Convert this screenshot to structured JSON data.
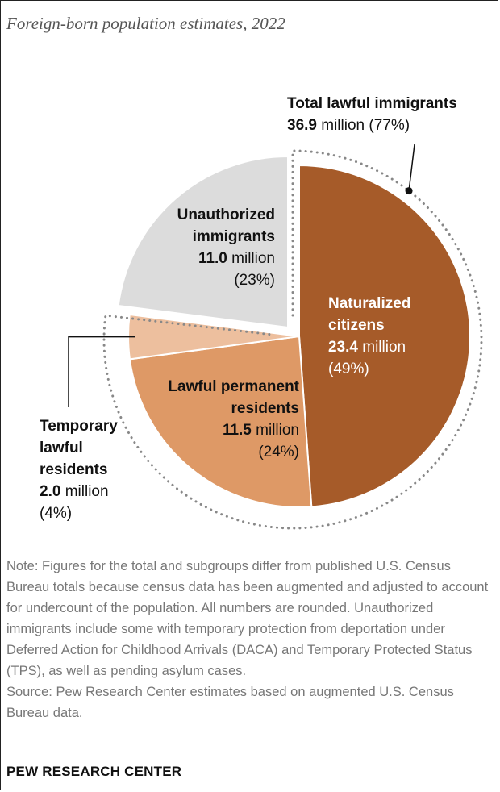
{
  "title": "Foreign-born population estimates, 2022",
  "chart_data": {
    "type": "pie",
    "title": "Foreign-born population estimates, 2022",
    "unit": "million",
    "slices": [
      {
        "key": "naturalized",
        "label_lines": [
          "Naturalized",
          "citizens"
        ],
        "value": 23.4,
        "value_text": "23.4",
        "unit": "million",
        "percent": "(49%)",
        "percent_value": 49,
        "color": "#A65B29"
      },
      {
        "key": "permanent",
        "label_lines": [
          "Lawful permanent",
          "residents"
        ],
        "value": 11.5,
        "value_text": "11.5",
        "unit": "million",
        "percent": "(24%)",
        "percent_value": 24,
        "color": "#DE9966"
      },
      {
        "key": "temporary",
        "label_lines": [
          "Temporary",
          "lawful",
          "residents"
        ],
        "value": 2.0,
        "value_text": "2.0",
        "unit": "million",
        "percent": "(4%)",
        "percent_value": 4,
        "color": "#EDBF9E"
      },
      {
        "key": "unauthorized",
        "label_lines": [
          "Unauthorized",
          "immigrants"
        ],
        "value": 11.0,
        "value_text": "11.0",
        "unit": "million",
        "percent": "(23%)",
        "percent_value": 23,
        "color": "#DCDCDC"
      }
    ],
    "group_annotation": {
      "title": "Total lawful immigrants",
      "value_text": "36.9",
      "value": 36.9,
      "unit": "million",
      "percent": "(77%)",
      "percent_value": 77
    }
  },
  "note": "Note: Figures for the total and subgroups differ from published U.S. Census Bureau totals because census data has been augmented and adjusted to account for undercount of the population. All numbers are rounded. Unauthorized immigrants include some with temporary protection from deportation under Deferred Action for Childhood Arrivals (DACA) and Temporary Protected Status (TPS), as well as pending asylum cases.",
  "source": "Source: Pew Research Center estimates based on augmented U.S. Census Bureau data.",
  "brand": "PEW RESEARCH CENTER"
}
